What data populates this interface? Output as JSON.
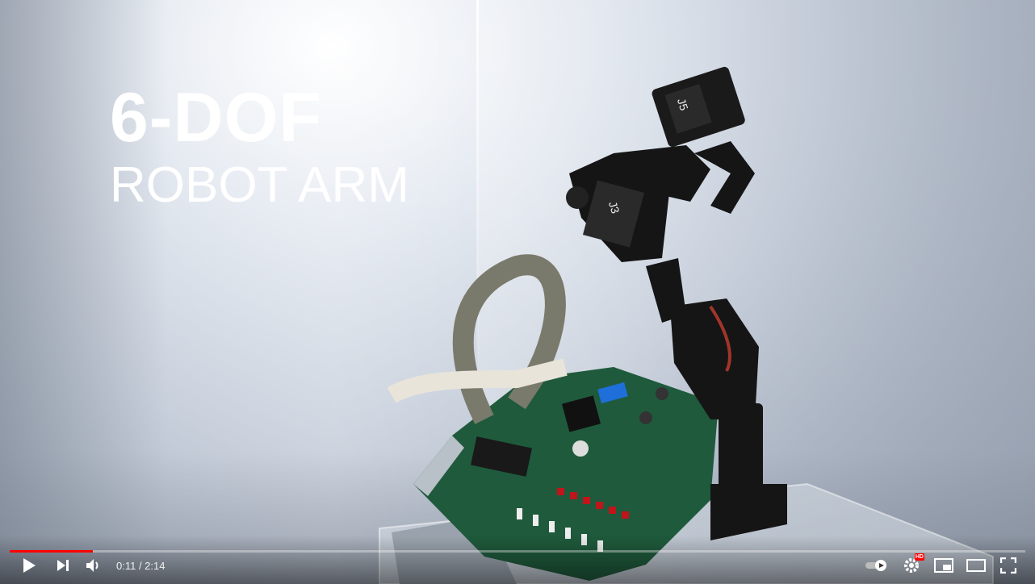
{
  "overlay": {
    "title_line1": "6-DOF",
    "title_line2": "ROBOT ARM"
  },
  "servo_labels": {
    "upper": "J5",
    "lower": "J3"
  },
  "player": {
    "time_display": "0:11 / 2:14",
    "progress_fraction": 0.082,
    "hd_badge": "HD",
    "accent_color": "#ff0000",
    "icons": [
      "play-icon",
      "next-icon",
      "volume-icon",
      "autoplay-toggle-icon",
      "settings-icon",
      "miniplayer-icon",
      "theater-mode-icon",
      "fullscreen-icon"
    ]
  }
}
